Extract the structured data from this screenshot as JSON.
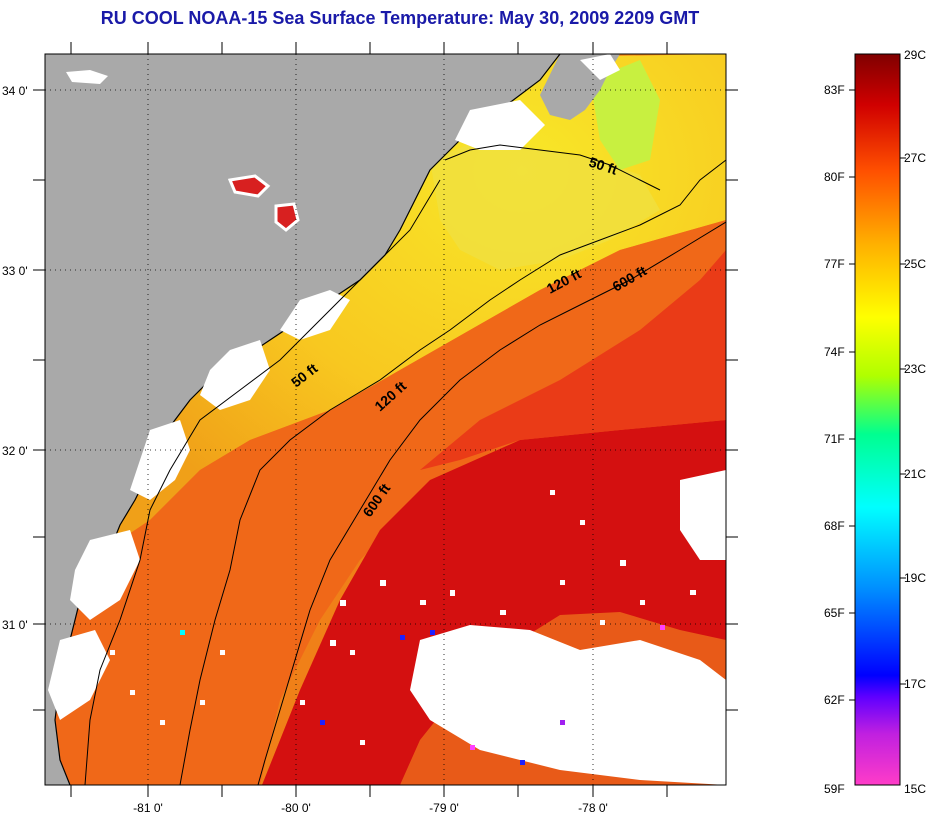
{
  "title": "RU COOL  NOAA-15  Sea Surface Temperature:  May 30, 2009 2209 GMT",
  "map": {
    "lat_labels": [
      "34 0'",
      "33 0'",
      "32 0'",
      "31 0'"
    ],
    "lon_labels": [
      "-81 0'",
      "-80 0'",
      "-79 0'",
      "-78 0'"
    ],
    "contour_labels": [
      {
        "id": "contour-label-50ft-north",
        "text": "50 ft"
      },
      {
        "id": "contour-label-50ft-south",
        "text": "50 ft"
      },
      {
        "id": "contour-label-120ft-north",
        "text": "120 ft"
      },
      {
        "id": "contour-label-120ft-south",
        "text": "120 ft"
      },
      {
        "id": "contour-label-600ft-north",
        "text": "600 ft"
      },
      {
        "id": "contour-label-600ft-south",
        "text": "600 ft"
      }
    ],
    "colors": {
      "land": "#a9a9a9",
      "cloud": "#ffffff",
      "gulf_stream": "#d81010",
      "shelf_warm": "#f07818",
      "nearshore": "#f8d020",
      "coastal_cool": "#d0f040"
    }
  },
  "colorbar": {
    "fahrenheit_labels": [
      "83F",
      "80F",
      "77F",
      "74F",
      "71F",
      "68F",
      "65F",
      "62F",
      "59F"
    ],
    "celsius_labels": [
      "29C",
      "27C",
      "25C",
      "23C",
      "21C",
      "19C",
      "17C",
      "15C"
    ],
    "gradient_colors": [
      "#ff3cc8",
      "#a020f0",
      "#0000ff",
      "#0080ff",
      "#00ffff",
      "#00ff80",
      "#c0ff00",
      "#ffff00",
      "#ffa000",
      "#ff5000",
      "#e00000",
      "#800000"
    ]
  }
}
